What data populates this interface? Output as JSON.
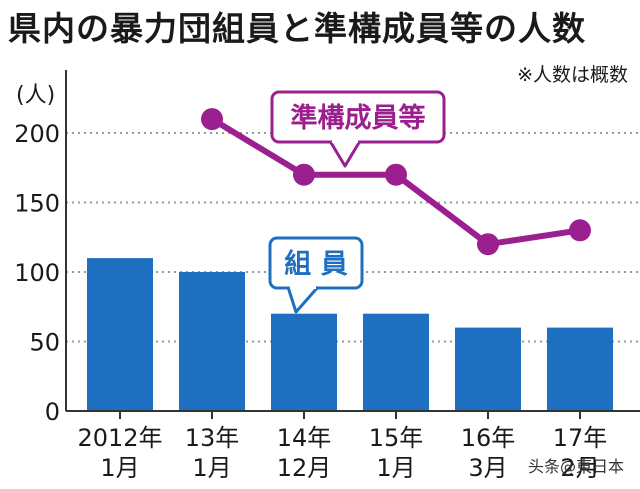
{
  "title": "県内の暴力団組員と準構成員等の人数",
  "note": "※人数は概数",
  "watermark": "头条@東日本",
  "colors": {
    "bar": "#1f6fc0",
    "line": "#9c1f8f",
    "grid": "#9a9a9a",
    "axis": "#333333"
  },
  "chart_data": {
    "type": "bar",
    "title": "県内の暴力団組員と準構成員等の人数",
    "ylabel": "(人)",
    "ylim": [
      0,
      240
    ],
    "yticks": [
      0,
      50,
      100,
      150,
      200
    ],
    "grid": true,
    "categories": [
      [
        "2012年",
        "1月"
      ],
      [
        "13年",
        "1月"
      ],
      [
        "14年",
        "12月"
      ],
      [
        "15年",
        "1月"
      ],
      [
        "16年",
        "3月"
      ],
      [
        "17年",
        "2月"
      ]
    ],
    "series": [
      {
        "name": "組 員",
        "type": "bar",
        "values": [
          110,
          100,
          70,
          70,
          60,
          60
        ]
      },
      {
        "name": "準構成員等",
        "type": "line",
        "values": [
          null,
          210,
          170,
          170,
          120,
          130
        ]
      }
    ]
  }
}
